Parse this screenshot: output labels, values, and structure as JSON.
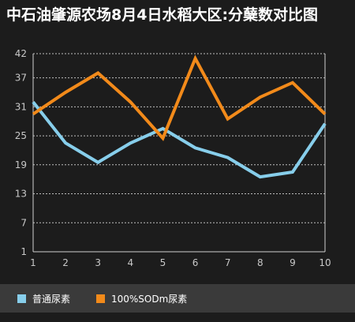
{
  "chart_data": {
    "type": "line",
    "title": "中石油肇源农场8月4日水稻大区:分蘖数对比图",
    "x": [
      1,
      2,
      3,
      4,
      5,
      6,
      7,
      8,
      9,
      10
    ],
    "y_ticks": [
      1,
      7,
      13,
      19,
      25,
      31,
      37,
      42
    ],
    "ylim": [
      1,
      42
    ],
    "grid": true,
    "legend": "bottom",
    "series": [
      {
        "name": "普通尿素",
        "color": "#87ceeb",
        "values": [
          32,
          23.5,
          19.5,
          23.5,
          26.5,
          22.5,
          20.5,
          16.5,
          17.5,
          27.5
        ]
      },
      {
        "name": "100%SODm尿素",
        "color": "#f28a1a",
        "values": [
          29.5,
          34,
          38,
          32,
          24.5,
          41,
          28.5,
          33,
          36,
          29.5
        ]
      }
    ]
  }
}
